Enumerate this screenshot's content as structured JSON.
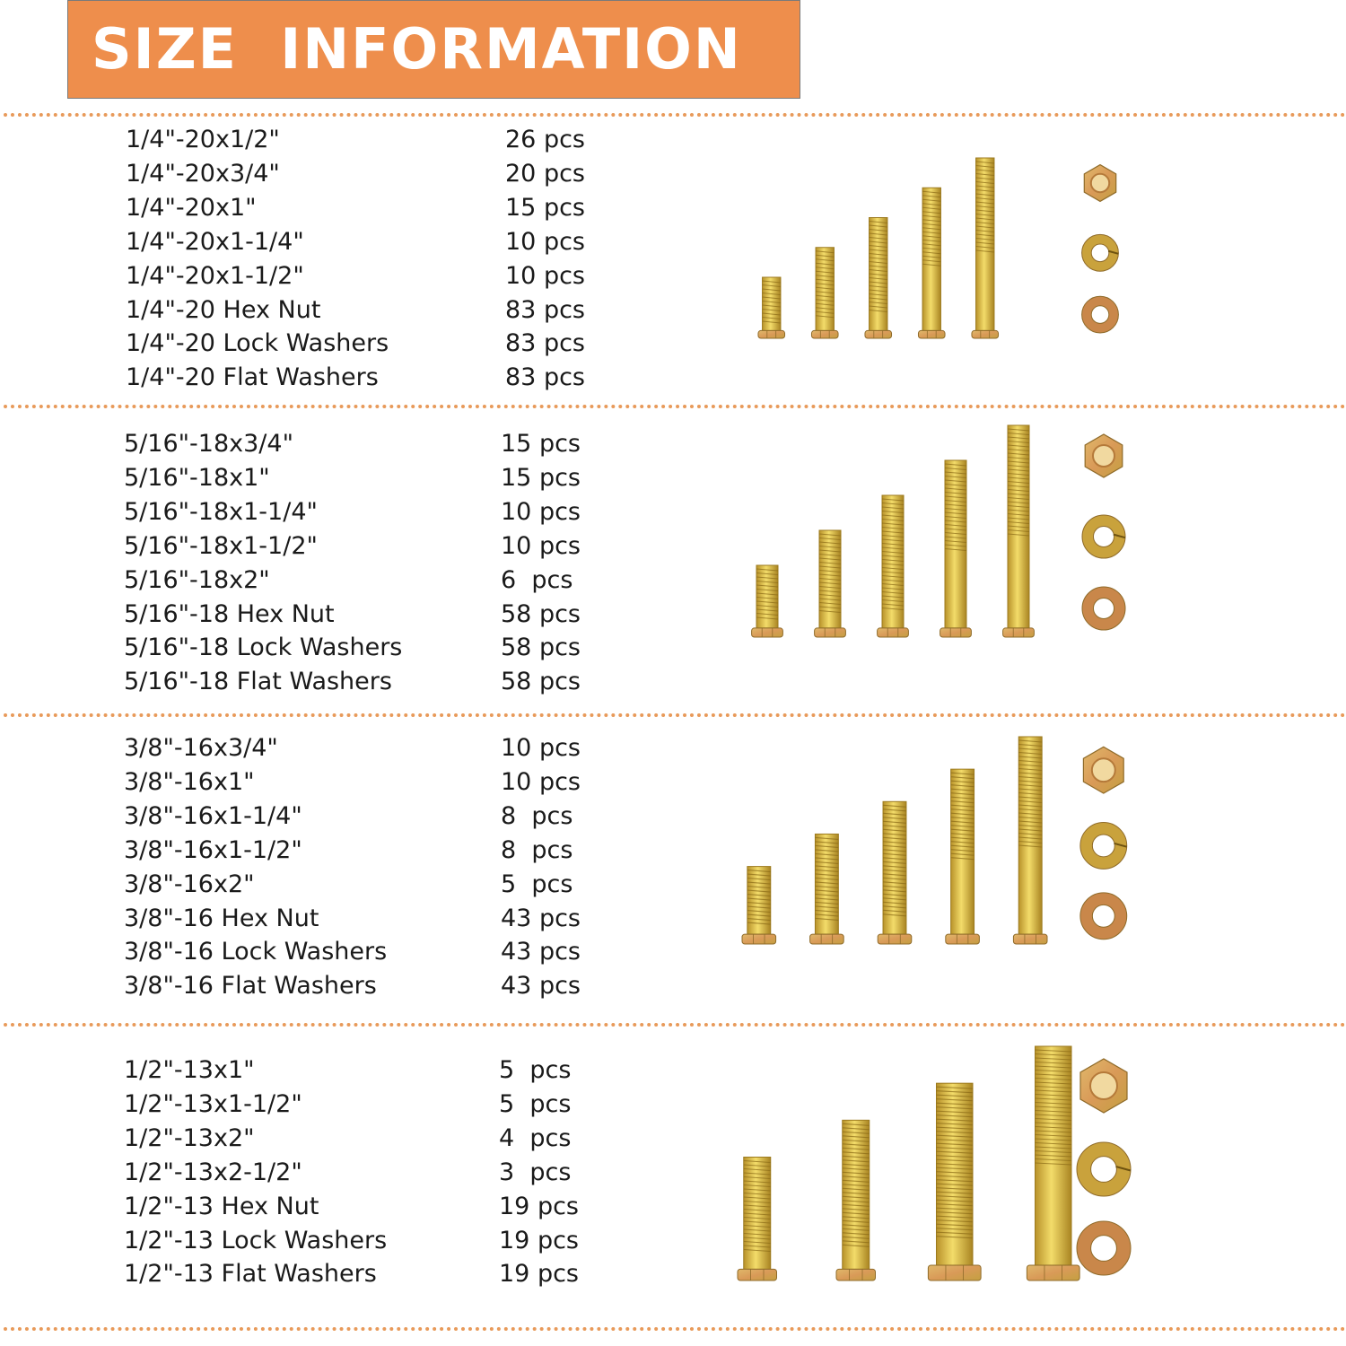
{
  "header": {
    "title": "SIZE  INFORMATION"
  },
  "colors": {
    "banner": "#ee8e4c",
    "divider": "#e89a5a",
    "brass": "#d9b63a",
    "copper": "#c9874a"
  },
  "sections": [
    {
      "items": [
        {
          "name": "1/4\"-20x1/2\"",
          "qty": "26 pcs"
        },
        {
          "name": "1/4\"-20x3/4\"",
          "qty": "20 pcs"
        },
        {
          "name": "1/4\"-20x1\"",
          "qty": "15 pcs"
        },
        {
          "name": "1/4\"-20x1-1/4\"",
          "qty": "10 pcs"
        },
        {
          "name": "1/4\"-20x1-1/2\"",
          "qty": "10 pcs"
        },
        {
          "name": "1/4\"-20 Hex Nut",
          "qty": "83 pcs"
        },
        {
          "name": "1/4\"-20 Lock Washers",
          "qty": "83 pcs"
        },
        {
          "name": "1/4\"-20 Flat Washers",
          "qty": "83 pcs"
        }
      ],
      "illustration": {
        "bolts": 5,
        "icon": "bolt-icon",
        "hardware": [
          "hex-nut-icon",
          "lock-washer-icon",
          "flat-washer-icon"
        ]
      }
    },
    {
      "items": [
        {
          "name": "5/16\"-18x3/4\"",
          "qty": "15 pcs"
        },
        {
          "name": "5/16\"-18x1\"",
          "qty": "15 pcs"
        },
        {
          "name": "5/16\"-18x1-1/4\"",
          "qty": "10 pcs"
        },
        {
          "name": "5/16\"-18x1-1/2\"",
          "qty": "10 pcs"
        },
        {
          "name": "5/16\"-18x2\"",
          "qty": "6  pcs"
        },
        {
          "name": "5/16\"-18 Hex Nut",
          "qty": "58 pcs"
        },
        {
          "name": "5/16\"-18 Lock Washers",
          "qty": "58 pcs"
        },
        {
          "name": "5/16\"-18 Flat Washers",
          "qty": "58 pcs"
        }
      ],
      "illustration": {
        "bolts": 5,
        "icon": "bolt-icon",
        "hardware": [
          "hex-nut-icon",
          "lock-washer-icon",
          "flat-washer-icon"
        ]
      }
    },
    {
      "items": [
        {
          "name": "3/8\"-16x3/4\"",
          "qty": "10 pcs"
        },
        {
          "name": "3/8\"-16x1\"",
          "qty": "10 pcs"
        },
        {
          "name": "3/8\"-16x1-1/4\"",
          "qty": "8  pcs"
        },
        {
          "name": "3/8\"-16x1-1/2\"",
          "qty": "8  pcs"
        },
        {
          "name": "3/8\"-16x2\"",
          "qty": "5  pcs"
        },
        {
          "name": "3/8\"-16 Hex Nut",
          "qty": "43 pcs"
        },
        {
          "name": "3/8\"-16 Lock Washers",
          "qty": "43 pcs"
        },
        {
          "name": "3/8\"-16 Flat Washers",
          "qty": "43 pcs"
        }
      ],
      "illustration": {
        "bolts": 5,
        "icon": "bolt-icon",
        "hardware": [
          "hex-nut-icon",
          "lock-washer-icon",
          "flat-washer-icon"
        ]
      }
    },
    {
      "items": [
        {
          "name": "1/2\"-13x1\"",
          "qty": "5  pcs"
        },
        {
          "name": "1/2\"-13x1-1/2\"",
          "qty": "5  pcs"
        },
        {
          "name": "1/2\"-13x2\"",
          "qty": "4  pcs"
        },
        {
          "name": "1/2\"-13x2-1/2\"",
          "qty": "3  pcs"
        },
        {
          "name": "1/2\"-13 Hex Nut",
          "qty": "19 pcs"
        },
        {
          "name": "1/2\"-13 Lock Washers",
          "qty": "19 pcs"
        },
        {
          "name": "1/2\"-13 Flat Washers",
          "qty": "19 pcs"
        }
      ],
      "illustration": {
        "bolts": 4,
        "icon": "bolt-icon",
        "hardware": [
          "hex-nut-icon",
          "lock-washer-icon",
          "flat-washer-icon"
        ]
      }
    }
  ]
}
